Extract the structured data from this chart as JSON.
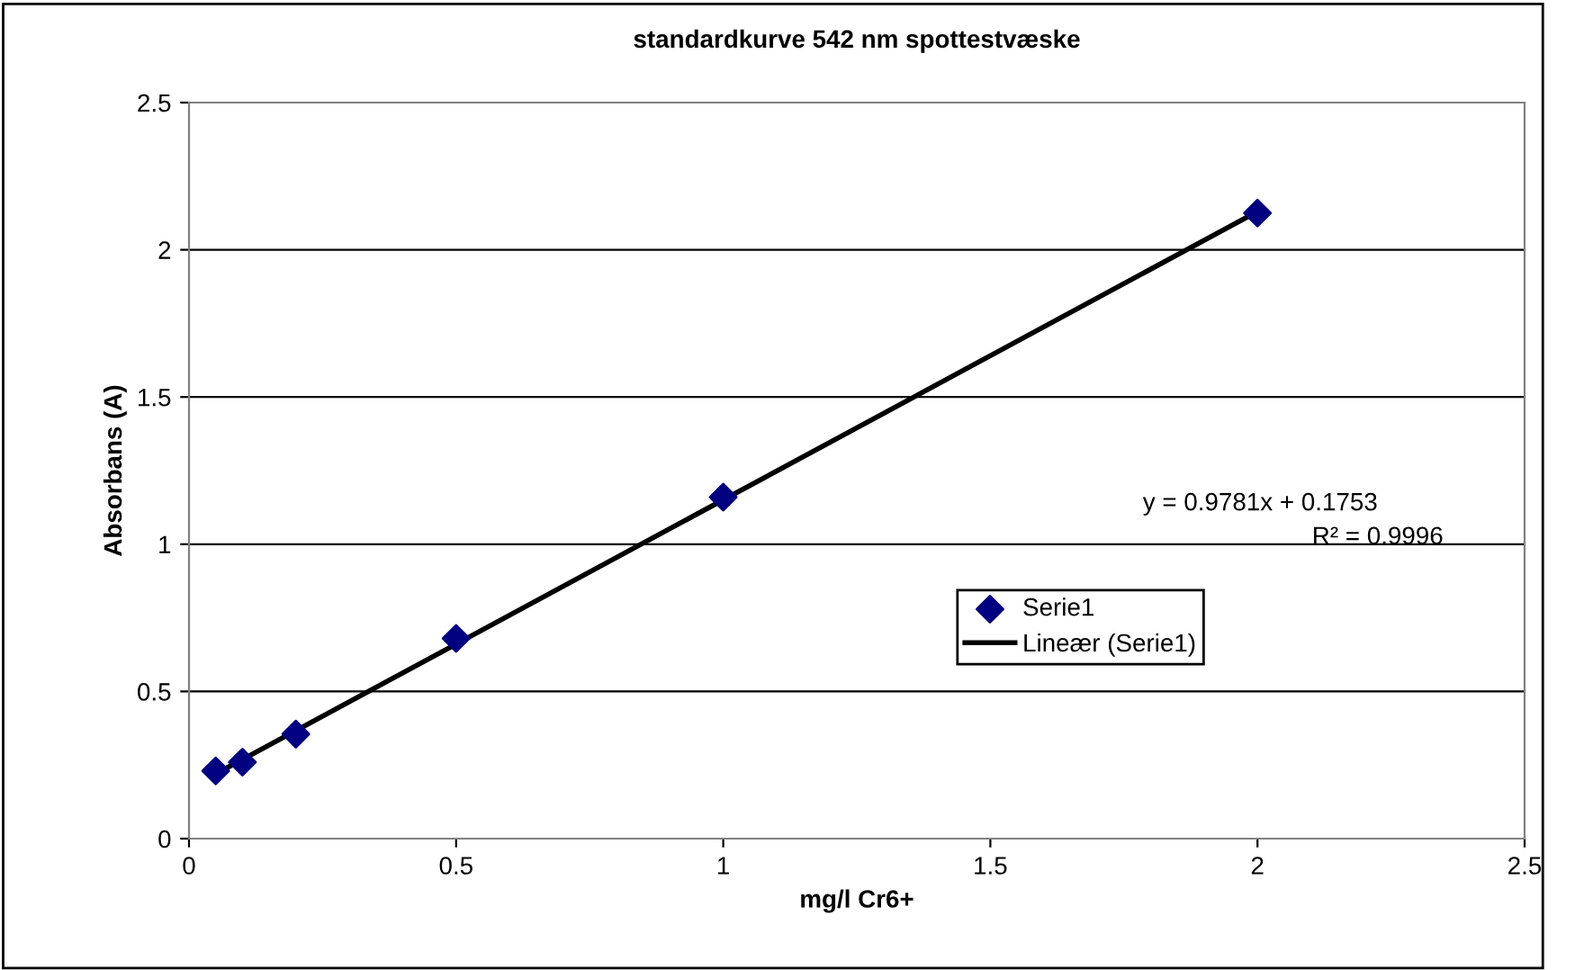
{
  "chart_data": {
    "type": "scatter",
    "title": "standardkurve 542 nm spottestvæske",
    "xlabel": "mg/l Cr6+",
    "ylabel": "Absorbans (A)",
    "series": [
      {
        "name": "Serie1",
        "color": "#000080",
        "marker": "diamond",
        "x": [
          0.05,
          0.1,
          0.2,
          0.5,
          1,
          2
        ],
        "values": [
          0.23,
          0.26,
          0.355,
          0.68,
          1.16,
          2.125
        ]
      },
      {
        "name": "Lineær (Serie1)",
        "type": "line",
        "color": "#000000",
        "marker": "none",
        "line_style": "solid",
        "x": [
          0.05,
          2
        ],
        "values": [
          0.22,
          2.13
        ]
      }
    ],
    "annotations": [
      "y = 0.9781x + 0.1753",
      "R² = 0.9996"
    ],
    "xlim": [
      0,
      2.5
    ],
    "ylim": [
      0,
      2.5
    ],
    "xticks": [
      0,
      0.5,
      1,
      1.5,
      2,
      2.5
    ],
    "yticks": [
      0,
      0.5,
      1,
      1.5,
      2,
      2.5
    ],
    "grid": "y",
    "legend": "lower right"
  }
}
